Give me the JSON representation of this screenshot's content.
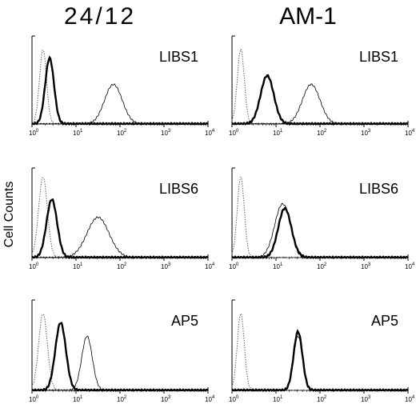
{
  "columns": [
    "24/12",
    "AM-1"
  ],
  "y_axis_label": "Cell Counts",
  "axis_ticks": [
    {
      "base": "10",
      "exponent": "0"
    },
    {
      "base": "10",
      "exponent": "1"
    },
    {
      "base": "10",
      "exponent": "2"
    },
    {
      "base": "10",
      "exponent": "3"
    },
    {
      "base": "10",
      "exponent": "4"
    }
  ],
  "panels": [
    {
      "label": "LIBS1"
    },
    {
      "label": "LIBS1"
    },
    {
      "label": "LIBS6"
    },
    {
      "label": "LIBS6"
    },
    {
      "label": "AP5"
    },
    {
      "label": "AP5"
    }
  ]
}
